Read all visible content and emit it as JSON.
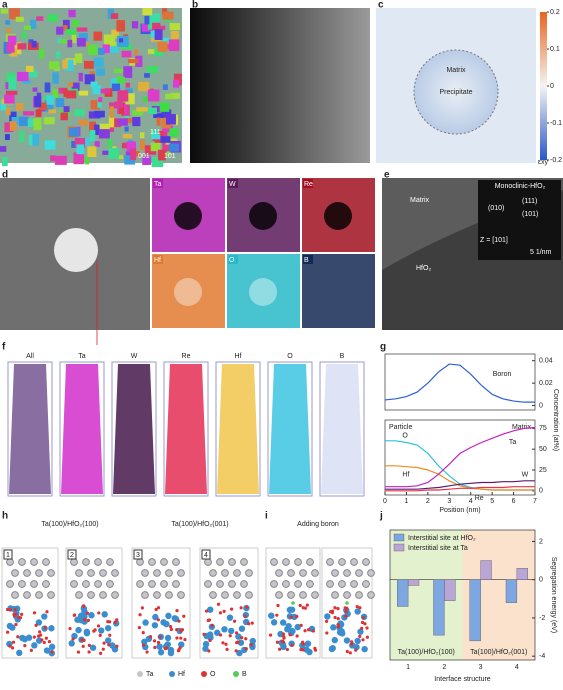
{
  "panel_labels": [
    "a",
    "b",
    "c",
    "d",
    "e",
    "f",
    "g",
    "h",
    "i",
    "j"
  ],
  "a": {
    "ipf": [
      "111",
      "001",
      "101"
    ]
  },
  "c": {
    "matrix": "Matrix",
    "precipitate": "Precipitate",
    "colorbar": {
      "lim": [
        -0.2,
        0.2
      ],
      "ticks": [
        0.2,
        0.1,
        0,
        -0.1,
        -0.2
      ],
      "label": "εxy"
    }
  },
  "d": {
    "maps": [
      "Ta",
      "W",
      "Re",
      "Hf",
      "O",
      "B"
    ]
  },
  "e": {
    "matrix": "Matrix",
    "title": "Monoclinic-HfO₂",
    "spots": [
      "(111)",
      "(010)",
      "(101)"
    ],
    "zone": "Z = [101]",
    "scale": "5 1/nm",
    "particle": "HfO₂"
  },
  "f": {
    "columns": [
      "All",
      "Ta",
      "W",
      "Re",
      "Hf",
      "O",
      "B"
    ]
  },
  "h": {
    "left": "Ta(100)/HfO₂(100)",
    "right": "Ta(100)/HfO₂(001)",
    "numbers": [
      "1",
      "2",
      "3",
      "4"
    ]
  },
  "i": {
    "title": "Adding boron"
  },
  "legend": [
    "Ta",
    "Hf",
    "O",
    "B"
  ],
  "chart_data": [
    {
      "type": "line",
      "x": [
        0,
        0.5,
        1,
        1.5,
        2,
        2.5,
        3,
        3.5,
        4,
        4.5,
        5,
        5.5,
        6,
        6.5,
        7
      ],
      "xlim": [
        0,
        7
      ],
      "ylim": [
        -0.004,
        0.046
      ],
      "yticks": [
        0,
        0.02,
        0.04
      ],
      "series": [
        {
          "name": "Boron",
          "color": "#2b5fd9",
          "values": [
            0.005,
            0.006,
            0.008,
            0.012,
            0.02,
            0.03,
            0.037,
            0.036,
            0.028,
            0.018,
            0.01,
            0.006,
            0.004,
            0.003,
            0.003
          ]
        }
      ]
    },
    {
      "type": "line",
      "x": [
        0,
        0.5,
        1,
        1.5,
        2,
        2.5,
        3,
        3.5,
        4,
        4.5,
        5,
        5.5,
        6,
        6.5,
        7
      ],
      "xlim": [
        0,
        7
      ],
      "xticks": [
        0,
        1,
        2,
        3,
        4,
        5,
        6,
        7
      ],
      "ylim": [
        -5,
        85
      ],
      "yticks": [
        0,
        25,
        50,
        75
      ],
      "xlabel": "Position (nm)",
      "ylabel": "Concentration (at%)",
      "annotations": [
        "Particle",
        "Matrix"
      ],
      "series": [
        {
          "name": "O",
          "color": "#2ec4d8",
          "values": [
            60,
            60,
            58,
            55,
            45,
            30,
            18,
            8,
            4,
            2,
            1,
            1,
            1,
            1,
            1
          ]
        },
        {
          "name": "Hf",
          "color": "#f08a24",
          "values": [
            30,
            30,
            29,
            28,
            25,
            20,
            12,
            6,
            3,
            2,
            1,
            1,
            1,
            1,
            1
          ]
        },
        {
          "name": "Ta",
          "color": "#c81fc0",
          "values": [
            5,
            5,
            5,
            6,
            10,
            20,
            32,
            45,
            52,
            58,
            63,
            68,
            72,
            75,
            76
          ]
        },
        {
          "name": "W",
          "color": "#5a1a6e",
          "values": [
            2,
            2,
            2,
            2,
            3,
            4,
            6,
            8,
            9,
            10,
            10,
            11,
            11,
            12,
            12
          ]
        },
        {
          "name": "Re",
          "color": "#e8334a",
          "values": [
            0,
            0,
            0,
            0,
            1,
            1,
            2,
            3,
            3,
            4,
            4,
            4,
            5,
            5,
            5
          ]
        }
      ]
    },
    {
      "type": "bar",
      "categories": [
        "1",
        "2",
        "3",
        "4"
      ],
      "ylim": [
        -4.2,
        2.6
      ],
      "yticks": [
        2,
        0,
        -2,
        -4
      ],
      "xlabel": "Interface structure",
      "ylabel": "Segregation energy (eV)",
      "regions": [
        {
          "label": "Ta(100)/HfO₂(100)",
          "color": "#e4f1cf"
        },
        {
          "label": "Ta(100)/HfO₂(001)",
          "color": "#fbe2cd"
        }
      ],
      "series": [
        {
          "name": "Interstitial site at HfO₂",
          "color": "#7ea6e0",
          "values": [
            -1.4,
            -2.9,
            -3.2,
            -1.2
          ]
        },
        {
          "name": "Interstitial site at Ta",
          "color": "#b9a6d6",
          "values": [
            -0.3,
            -1.1,
            1.0,
            0.6
          ]
        }
      ]
    }
  ]
}
